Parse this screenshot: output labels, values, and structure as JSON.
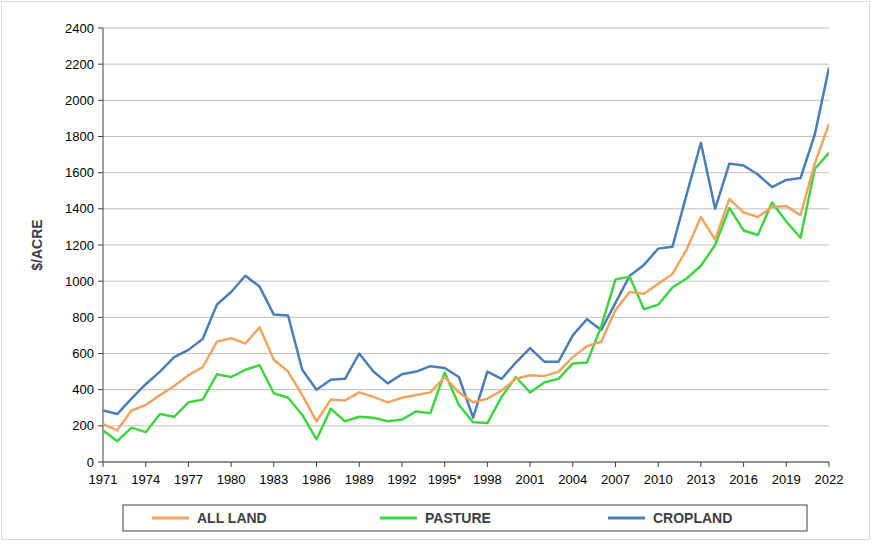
{
  "chart_data": {
    "type": "line",
    "y_label": "$/ACRE",
    "categories": [
      "1971",
      null,
      null,
      "1974",
      null,
      null,
      "1977",
      null,
      null,
      "1980",
      null,
      null,
      "1983",
      null,
      null,
      "1986",
      null,
      null,
      "1989",
      null,
      null,
      "1992",
      null,
      null,
      "1995*",
      null,
      null,
      "1998",
      null,
      null,
      "2001",
      null,
      null,
      "2004",
      null,
      null,
      "2007",
      null,
      null,
      "2010",
      null,
      null,
      "2013",
      null,
      null,
      "2016",
      null,
      null,
      "2019",
      null,
      null,
      "2022"
    ],
    "series": [
      {
        "name": "ALL LAND",
        "color": "#f4a460",
        "values": [
          210,
          175,
          285,
          315,
          370,
          420,
          480,
          525,
          665,
          685,
          655,
          745,
          565,
          500,
          370,
          225,
          345,
          340,
          385,
          360,
          330,
          355,
          370,
          385,
          470,
          385,
          330,
          350,
          395,
          460,
          480,
          475,
          500,
          580,
          640,
          665,
          840,
          940,
          930,
          985,
          1040,
          1175,
          1355,
          1230,
          1455,
          1380,
          1355,
          1410,
          1415,
          1365,
          1650,
          1870
        ]
      },
      {
        "name": "PASTURE",
        "color": "#3ed63e",
        "values": [
          175,
          115,
          190,
          165,
          265,
          250,
          330,
          345,
          485,
          470,
          510,
          535,
          380,
          355,
          260,
          125,
          295,
          225,
          250,
          245,
          225,
          235,
          280,
          270,
          495,
          315,
          220,
          215,
          360,
          470,
          385,
          440,
          460,
          545,
          550,
          750,
          1010,
          1025,
          845,
          870,
          965,
          1015,
          1085,
          1200,
          1405,
          1280,
          1255,
          1435,
          1330,
          1240,
          1620,
          1710
        ]
      },
      {
        "name": "CROPLAND",
        "color": "#4a7ebb",
        "values": [
          285,
          265,
          350,
          430,
          500,
          580,
          620,
          680,
          870,
          940,
          1030,
          970,
          815,
          810,
          510,
          400,
          455,
          460,
          600,
          500,
          435,
          485,
          500,
          530,
          520,
          470,
          245,
          500,
          460,
          550,
          630,
          555,
          555,
          700,
          790,
          730,
          880,
          1030,
          1090,
          1180,
          1190,
          1480,
          1765,
          1400,
          1650,
          1640,
          1590,
          1520,
          1560,
          1570,
          1810,
          2180
        ]
      }
    ],
    "ylim": [
      0,
      2400
    ],
    "yticks": [
      0,
      200,
      400,
      600,
      800,
      1000,
      1200,
      1400,
      1600,
      1800,
      2000,
      2200,
      2400
    ],
    "grid": true,
    "legend": "bottom"
  }
}
